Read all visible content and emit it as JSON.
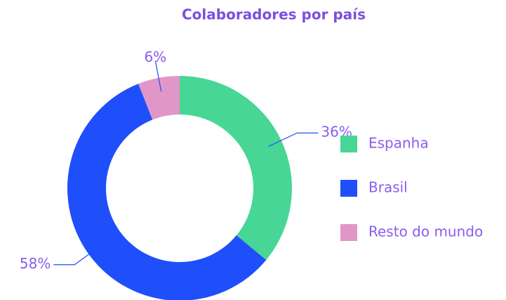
{
  "chart_data": {
    "type": "donut",
    "title": "Colaboradores por país",
    "categories": [
      "Espanha",
      "Brasil",
      "Resto do mundo"
    ],
    "values": [
      36,
      58,
      6
    ],
    "value_labels": [
      "36%",
      "58%",
      "6%"
    ],
    "colors": [
      "#47d695",
      "#1f4ffa",
      "#e097c8"
    ],
    "legend": "right"
  }
}
